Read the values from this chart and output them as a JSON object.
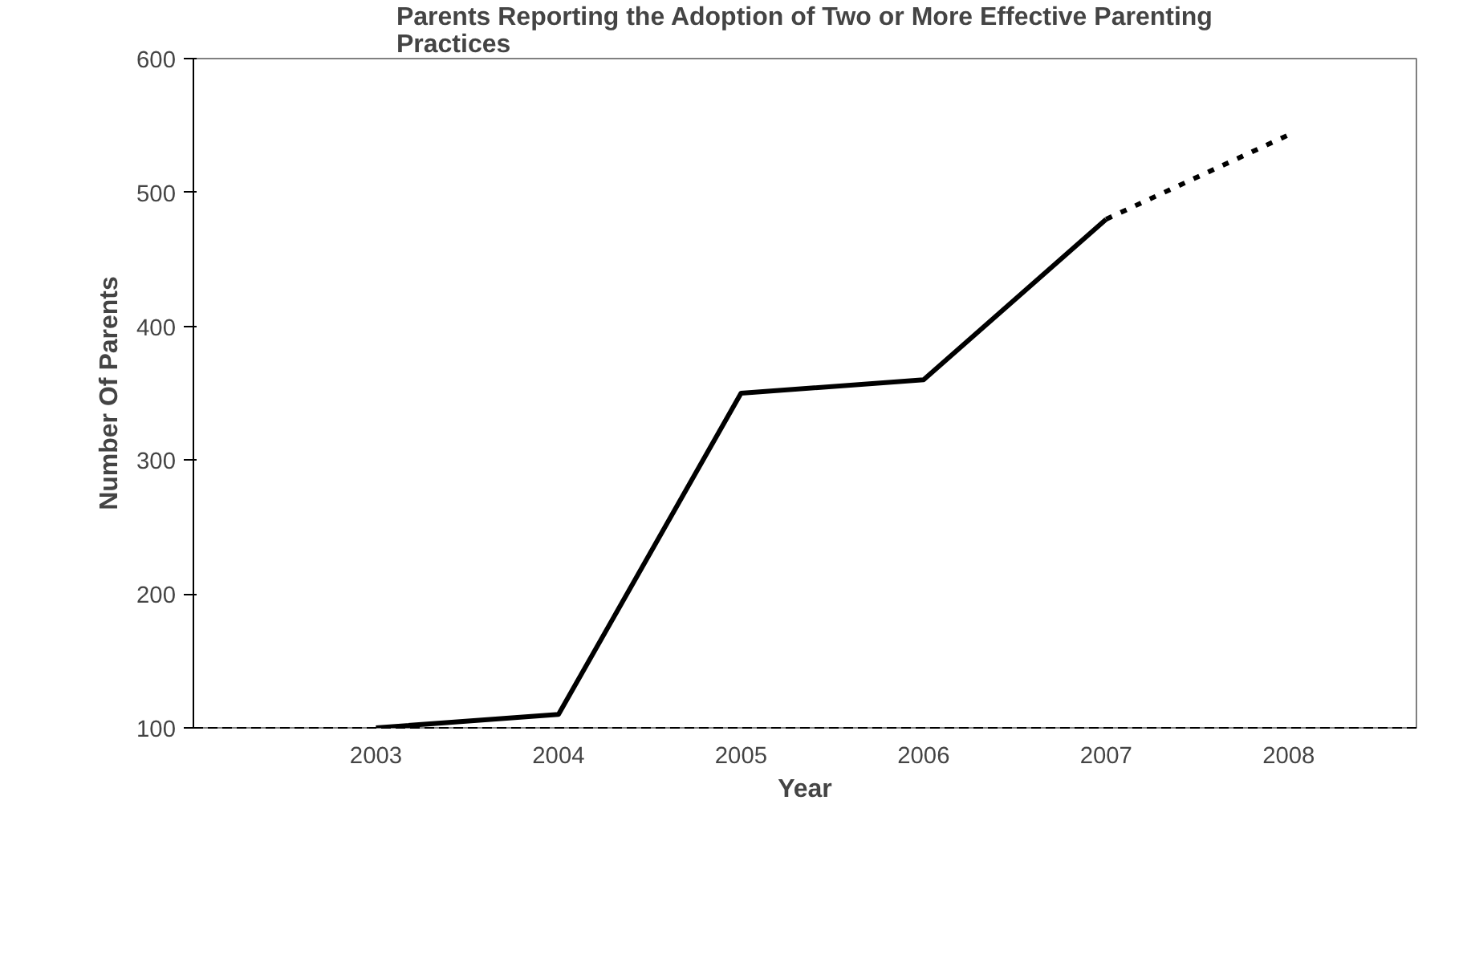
{
  "chart_data": {
    "type": "line",
    "title": "Parents Reporting the Adoption of Two or More Effective Parenting Practices",
    "xlabel": "Year",
    "ylabel": "Number Of Parents",
    "x": [
      2003,
      2004,
      2005,
      2006,
      2007,
      2008
    ],
    "series": [
      {
        "color": "#000000",
        "line_style": "solid",
        "values": [
          100,
          110,
          350,
          360,
          480,
          null
        ]
      },
      {
        "color": "#000000",
        "line_style": "dotted",
        "values": [
          null,
          null,
          null,
          null,
          480,
          543
        ]
      }
    ],
    "xlim": [
      2002,
      2008.7
    ],
    "xticks": [
      2003,
      2004,
      2005,
      2006,
      2007,
      2008
    ],
    "ylim": [
      100,
      600
    ],
    "yticks": [
      100,
      200,
      300,
      400,
      500,
      600
    ],
    "grid": false,
    "marker": "none"
  }
}
